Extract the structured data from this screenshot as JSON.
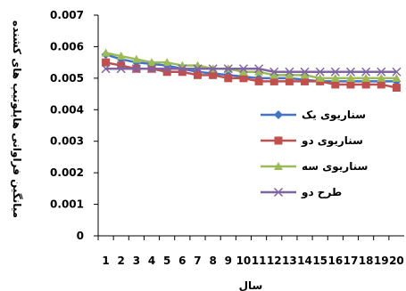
{
  "chart_data": {
    "type": "line",
    "title": "",
    "xlabel": "سال",
    "ylabel": "میانگین فراوانی هاپلوتیپ های کشنده",
    "x": [
      "1",
      "2",
      "3",
      "4",
      "5",
      "6",
      "7",
      "8",
      "9",
      "10",
      "11",
      "12",
      "13",
      "14",
      "15",
      "16",
      "17",
      "18",
      "19",
      "20"
    ],
    "xtick_labels": [
      "1",
      "2",
      "3",
      "4",
      "5",
      "6",
      "7",
      "8",
      "9",
      "10",
      "11",
      "12",
      "13",
      "14",
      "15",
      "16",
      "17",
      "18",
      "19",
      "20"
    ],
    "ylim": [
      0,
      0.007
    ],
    "yticks": [
      "0",
      "0.001",
      "0.002",
      "0.003",
      "0.004",
      "0.005",
      "0.006",
      "0.007"
    ],
    "ytick_values": [
      0,
      0.001,
      0.002,
      0.003,
      0.004,
      0.005,
      0.006,
      0.007
    ],
    "grid": false,
    "legend_position": "right",
    "series": [
      {
        "name": "سناریوی یک",
        "color": "#4472C4",
        "marker": "diamond",
        "values": [
          0.00575,
          0.0056,
          0.0055,
          0.00545,
          0.0054,
          0.0053,
          0.0052,
          0.00515,
          0.0051,
          0.00505,
          0.005,
          0.005,
          0.005,
          0.00495,
          0.0049,
          0.0049,
          0.0049,
          0.0049,
          0.0049,
          0.0049
        ]
      },
      {
        "name": "سناریوی دو",
        "color": "#C0504D",
        "marker": "square",
        "values": [
          0.0055,
          0.0054,
          0.0053,
          0.0053,
          0.0052,
          0.0052,
          0.0051,
          0.0051,
          0.005,
          0.005,
          0.0049,
          0.0049,
          0.0049,
          0.0049,
          0.0049,
          0.0048,
          0.0048,
          0.0048,
          0.0048,
          0.0047
        ]
      },
      {
        "name": "سناریوی سه",
        "color": "#9BBB59",
        "marker": "triangle",
        "values": [
          0.0058,
          0.0057,
          0.0056,
          0.0055,
          0.0055,
          0.0054,
          0.0054,
          0.0053,
          0.0053,
          0.0052,
          0.0052,
          0.0051,
          0.0051,
          0.0051,
          0.005,
          0.005,
          0.005,
          0.005,
          0.005,
          0.005
        ]
      },
      {
        "name": "طرح دو",
        "color": "#8064A2",
        "marker": "x",
        "values": [
          0.0053,
          0.0053,
          0.0053,
          0.0053,
          0.0053,
          0.0053,
          0.0053,
          0.0053,
          0.0053,
          0.0053,
          0.0053,
          0.0052,
          0.0052,
          0.0052,
          0.0052,
          0.0052,
          0.0052,
          0.0052,
          0.0052,
          0.0052
        ]
      }
    ]
  }
}
